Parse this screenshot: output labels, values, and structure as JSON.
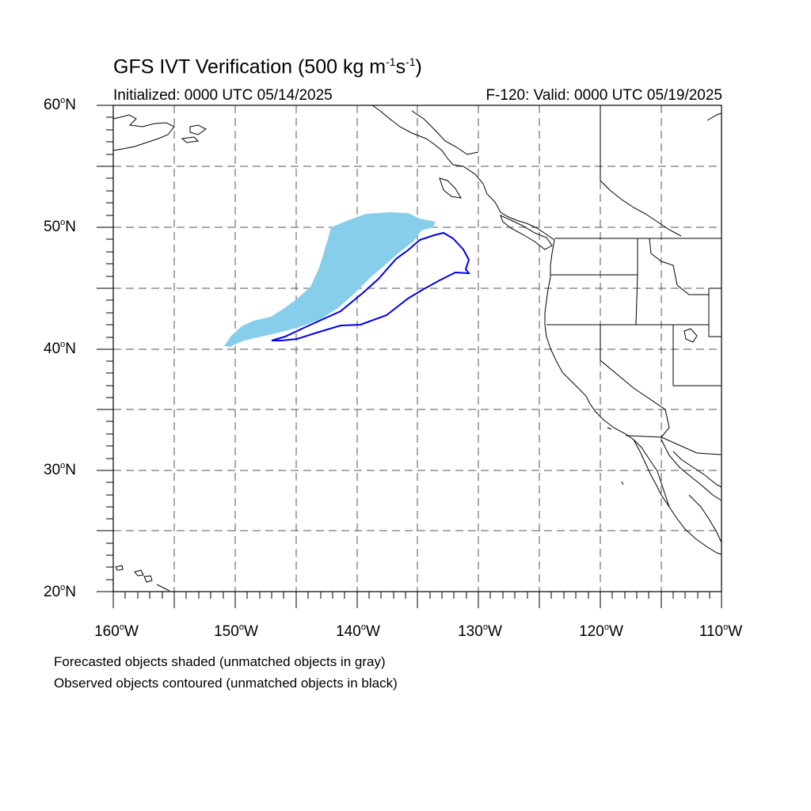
{
  "title": {
    "main": "GFS IVT Verification (500 kg m",
    "exp1": "-1",
    "mid": "s",
    "exp2": "-1",
    "end": ")"
  },
  "initialized": "Initialized: 0000 UTC 05/14/2025",
  "valid": "F-120: Valid: 0000 UTC 05/19/2025",
  "lat_labels": [
    {
      "value": "60",
      "suffix": "N"
    },
    {
      "value": "50",
      "suffix": "N"
    },
    {
      "value": "40",
      "suffix": "N"
    },
    {
      "value": "30",
      "suffix": "N"
    },
    {
      "value": "20",
      "suffix": "N"
    }
  ],
  "lon_labels": [
    {
      "value": "160",
      "suffix": "W"
    },
    {
      "value": "150",
      "suffix": "W"
    },
    {
      "value": "140",
      "suffix": "W"
    },
    {
      "value": "130",
      "suffix": "W"
    },
    {
      "value": "120",
      "suffix": "W"
    },
    {
      "value": "110",
      "suffix": "W"
    }
  ],
  "notes": [
    "Forecasted objects shaded (unmatched objects in gray)",
    "Observed objects contoured (unmatched objects in black)"
  ],
  "colors": {
    "forecast_fill": "#87ceeb",
    "observed_contour": "#0000ee",
    "coastline": "#000000",
    "grid": "#555555"
  },
  "map_extent": {
    "lon": [
      -160,
      -110
    ],
    "lat": [
      20,
      60
    ]
  }
}
